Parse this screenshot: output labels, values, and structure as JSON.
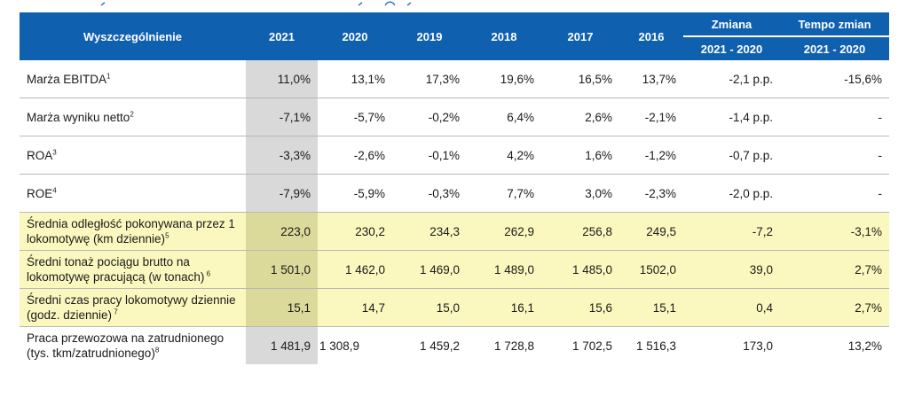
{
  "header": {
    "label": "Wyszczególnienie",
    "years": [
      "2021",
      "2020",
      "2019",
      "2018",
      "2017",
      "2016"
    ],
    "change_group": "Zmiana",
    "rate_group": "Tempo zmian",
    "change_sub": "2021 - 2020",
    "rate_sub": "2021 - 2020"
  },
  "rows": [
    {
      "label": "Marża EBITDA",
      "sup": "1",
      "values": [
        "11,0%",
        "13,1%",
        "17,3%",
        "19,6%",
        "16,5%",
        "13,7%"
      ],
      "change": "-2,1 p.p.",
      "rate": "-15,6%"
    },
    {
      "label": "Marża wyniku netto",
      "sup": "2",
      "values": [
        "-7,1%",
        "-5,7%",
        "-0,2%",
        "6,4%",
        "2,6%",
        "-2,1%"
      ],
      "change": "-1,4 p.p.",
      "rate": "-"
    },
    {
      "label": "ROA",
      "sup": "3",
      "values": [
        "-3,3%",
        "-2,6%",
        "-0,1%",
        "4,2%",
        "1,6%",
        "-1,2%"
      ],
      "change": "-0,7 p.p.",
      "rate": "-"
    },
    {
      "label": "ROE",
      "sup": "4",
      "values": [
        "-7,9%",
        "-5,9%",
        "-0,3%",
        "7,7%",
        "3,0%",
        "-2,3%"
      ],
      "change": "-2,0 p.p.",
      "rate": "-"
    },
    {
      "label": "Średnia odległość pokonywana przez 1 lokomotywę (km dziennie)",
      "sup": "5",
      "values": [
        "223,0",
        "230,2",
        "234,3",
        "262,9",
        "256,8",
        "249,5"
      ],
      "change": "-7,2",
      "rate": "-3,1%"
    },
    {
      "label": "Średni tonaż pociągu brutto na lokomotywę pracującą (w tonach)",
      "sup": " 6",
      "values": [
        "1 501,0",
        "1 462,0",
        "1 469,0",
        "1 489,0",
        "1 485,0",
        "1502,0"
      ],
      "change": "39,0",
      "rate": "2,7%"
    },
    {
      "label": "Średni czas pracy lokomotywy dziennie (godz. dziennie)",
      "sup": " 7",
      "values": [
        "15,1",
        "14,7",
        "15,0",
        "16,1",
        "15,6",
        "15,1"
      ],
      "change": "0,4",
      "rate": "2,7%"
    },
    {
      "label": "Praca przewozowa na zatrudnionego (tys. tkm/zatrudnionego)",
      "sup": "8",
      "values": [
        "1 481,9",
        "1 308,9",
        "1 459,2",
        "1 728,8",
        "1 702,5",
        "1 516,3"
      ],
      "change": "173,0",
      "rate": "13,2%"
    }
  ]
}
